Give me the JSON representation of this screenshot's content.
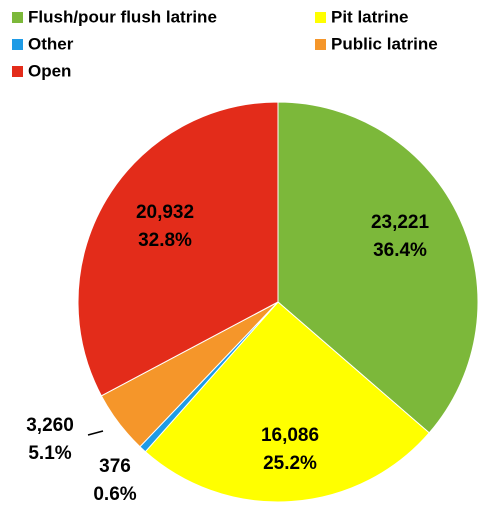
{
  "chart_data": {
    "type": "pie",
    "categories": [
      "Flush/pour flush latrine",
      "Pit latrine",
      "Other",
      "Public latrine",
      "Open"
    ],
    "values": [
      23221,
      16086,
      376,
      3260,
      20932
    ],
    "value_labels": [
      "23,221",
      "16,086",
      "376",
      "3,260",
      "20,932"
    ],
    "percent_labels": [
      "36.4%",
      "25.2%",
      "0.6%",
      "5.1%",
      "32.8%"
    ],
    "colors": [
      "#7cb83a",
      "#ffff00",
      "#1e9be6",
      "#f5962a",
      "#e32c1a"
    ],
    "legend": "top"
  }
}
